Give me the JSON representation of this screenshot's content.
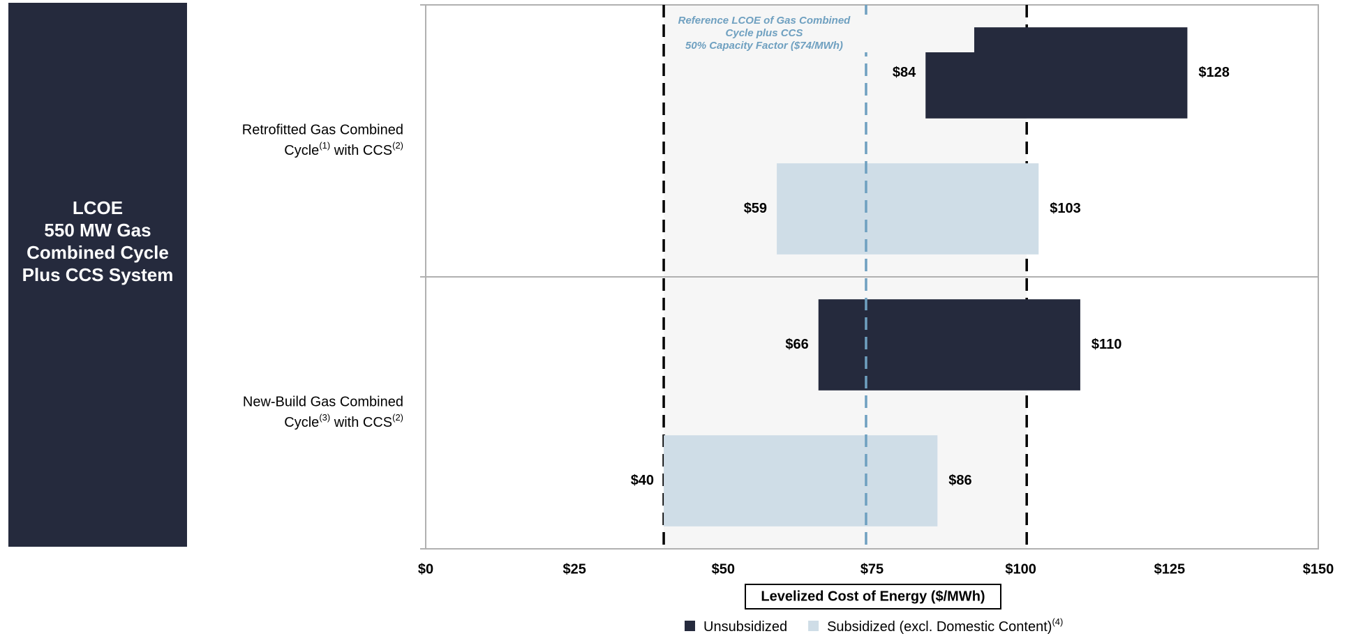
{
  "chart_data": {
    "type": "floating-bar",
    "panel_title": [
      "LCOE",
      "550 MW Gas",
      "Combined Cycle",
      "Plus CCS System"
    ],
    "categories": [
      [
        "Retrofitted Gas Combined",
        "Cycle",
        "(1)",
        " with CCS",
        "(2)"
      ],
      [
        "New-Build Gas Combined",
        "Cycle",
        "(3)",
        " with CCS",
        "(2)"
      ]
    ],
    "series": [
      {
        "name": [
          "Unsubsidized"
        ],
        "color": "#252a3d",
        "low": [
          84,
          66
        ],
        "high": [
          128,
          110
        ],
        "low_labels": [
          "$84",
          "$66"
        ],
        "high_labels": [
          "$128",
          "$110"
        ]
      },
      {
        "name": [
          "Subsidized (excl. Domestic Content)",
          "(4)"
        ],
        "color": "#cfdde7",
        "low": [
          59,
          40
        ],
        "high": [
          103,
          86
        ],
        "low_labels": [
          "$59",
          "$40"
        ],
        "high_labels": [
          "$103",
          "$86"
        ]
      }
    ],
    "xlim": [
      0,
      150
    ],
    "xticks": [
      {
        "value": 0,
        "label": "$0"
      },
      {
        "value": 25,
        "label": "$25"
      },
      {
        "value": 50,
        "label": "$50"
      },
      {
        "value": 75,
        "label": "$75"
      },
      {
        "value": 100,
        "label": "$100"
      },
      {
        "value": 125,
        "label": "$125"
      },
      {
        "value": 150,
        "label": "$150"
      }
    ],
    "xlabel": "Levelized Cost of Energy ($/MWh)",
    "shaded_range": [
      40,
      101
    ],
    "reference_line": {
      "value": 74,
      "color": "#6fa0c0",
      "text": [
        "Reference LCOE of Gas Combined",
        "Cycle plus CCS",
        "50% Capacity Factor ($74/MWh)"
      ]
    }
  }
}
